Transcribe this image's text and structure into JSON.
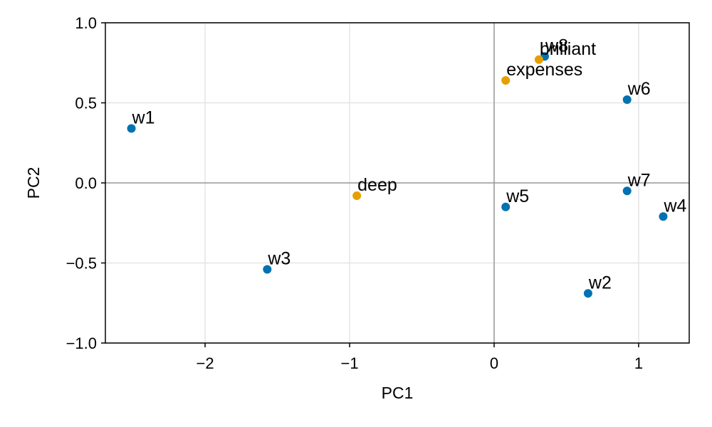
{
  "chart_data": {
    "type": "scatter",
    "title": "",
    "xlabel": "PC1",
    "ylabel": "PC2",
    "xlim": [
      -2.69,
      1.35
    ],
    "ylim": [
      -1.0,
      1.0
    ],
    "x_ticks": [
      -2,
      -1,
      0,
      1
    ],
    "y_ticks": [
      -1.0,
      -0.5,
      0.0,
      0.5,
      1.0
    ],
    "x_tick_labels": [
      "−2",
      "−1",
      "0",
      "1"
    ],
    "y_tick_labels": [
      "−1.0",
      "−0.5",
      "0.0",
      "0.5",
      "1.0"
    ],
    "grid": true,
    "zero_lines": true,
    "legend": "none",
    "colors": {
      "words_w": "#0072b2",
      "words_named": "#e69f00",
      "grid": "#e5e5e5",
      "zero_line": "#999999"
    },
    "series": [
      {
        "color": "#0072b2",
        "points": [
          {
            "label": "w1",
            "x": -2.51,
            "y": 0.34
          },
          {
            "label": "w2",
            "x": 0.65,
            "y": -0.69
          },
          {
            "label": "w3",
            "x": -1.57,
            "y": -0.54
          },
          {
            "label": "w4",
            "x": 1.17,
            "y": -0.21
          },
          {
            "label": "w5",
            "x": 0.08,
            "y": -0.15
          },
          {
            "label": "w6",
            "x": 0.92,
            "y": 0.52
          },
          {
            "label": "w7",
            "x": 0.92,
            "y": -0.05
          },
          {
            "label": "w8",
            "x": 0.35,
            "y": 0.79
          }
        ]
      },
      {
        "color": "#e69f00",
        "points": [
          {
            "label": "deep",
            "x": -0.95,
            "y": -0.08
          },
          {
            "label": "expenses",
            "x": 0.08,
            "y": 0.64
          },
          {
            "label": "brilliant",
            "x": 0.31,
            "y": 0.77
          }
        ]
      }
    ]
  }
}
